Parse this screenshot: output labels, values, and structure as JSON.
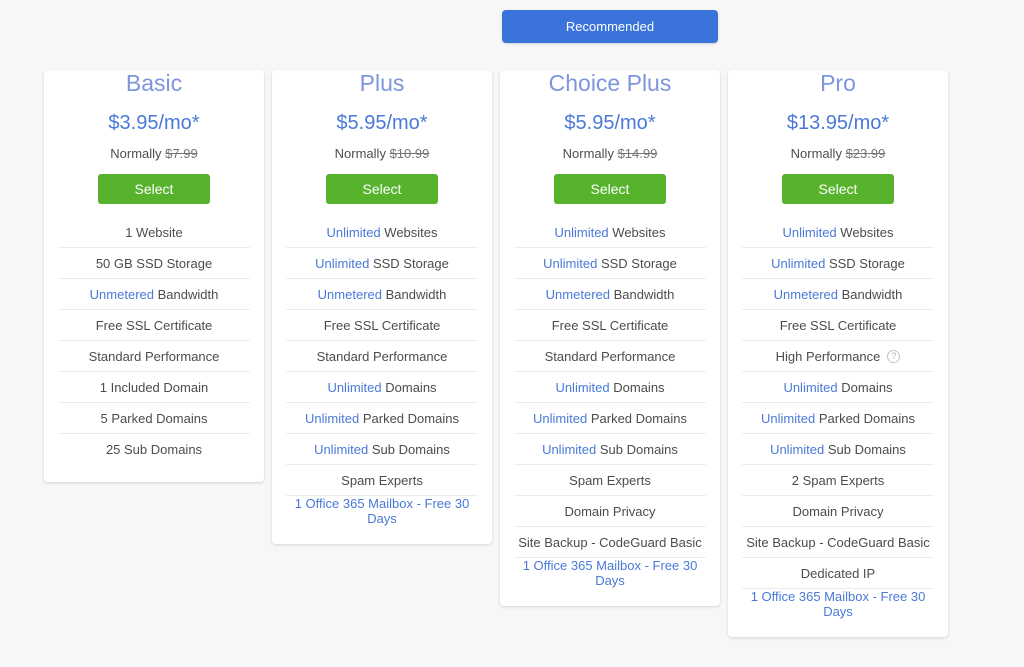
{
  "banner": {
    "label": "Recommended"
  },
  "colors": {
    "background": "#f7f7f8",
    "card": "#ffffff",
    "title_blue": "#7d95dc",
    "price_blue": "#4a79d7",
    "link_blue": "#4a79d7",
    "text_gray": "#4c4c4c",
    "muted_gray": "#757575",
    "button_green": "#57b22c",
    "banner_blue": "#3a73d9",
    "divider": "#ebebeb"
  },
  "plans": [
    {
      "name": "Basic",
      "price": "$3.95/mo*",
      "normally_label": "Normally",
      "original_price": "$7.99",
      "select_label": "Select",
      "recommended": false,
      "features": [
        {
          "link": "",
          "rest": "1 Website"
        },
        {
          "link": "",
          "rest": "50 GB SSD Storage"
        },
        {
          "link": "Unmetered",
          "rest": " Bandwidth"
        },
        {
          "link": "",
          "rest": "Free SSL Certificate"
        },
        {
          "link": "",
          "rest": "Standard Performance"
        },
        {
          "link": "",
          "rest": "1 Included Domain"
        },
        {
          "link": "",
          "rest": "5 Parked Domains"
        },
        {
          "link": "",
          "rest": "25 Sub Domains"
        }
      ]
    },
    {
      "name": "Plus",
      "price": "$5.95/mo*",
      "normally_label": "Normally",
      "original_price": "$10.99",
      "select_label": "Select",
      "recommended": false,
      "features": [
        {
          "link": "Unlimited",
          "rest": " Websites"
        },
        {
          "link": "Unlimited",
          "rest": " SSD Storage"
        },
        {
          "link": "Unmetered",
          "rest": " Bandwidth"
        },
        {
          "link": "",
          "rest": "Free SSL Certificate"
        },
        {
          "link": "",
          "rest": "Standard Performance"
        },
        {
          "link": "Unlimited",
          "rest": " Domains"
        },
        {
          "link": "Unlimited",
          "rest": " Parked Domains"
        },
        {
          "link": "Unlimited",
          "rest": " Sub Domains"
        },
        {
          "link": "",
          "rest": "Spam Experts"
        },
        {
          "link": "1 Office 365 Mailbox - Free 30 Days",
          "rest": ""
        }
      ]
    },
    {
      "name": "Choice Plus",
      "price": "$5.95/mo*",
      "normally_label": "Normally",
      "original_price": "$14.99",
      "select_label": "Select",
      "recommended": true,
      "features": [
        {
          "link": "Unlimited",
          "rest": " Websites"
        },
        {
          "link": "Unlimited",
          "rest": " SSD Storage"
        },
        {
          "link": "Unmetered",
          "rest": " Bandwidth"
        },
        {
          "link": "",
          "rest": "Free SSL Certificate"
        },
        {
          "link": "",
          "rest": "Standard Performance"
        },
        {
          "link": "Unlimited",
          "rest": " Domains"
        },
        {
          "link": "Unlimited",
          "rest": " Parked Domains"
        },
        {
          "link": "Unlimited",
          "rest": " Sub Domains"
        },
        {
          "link": "",
          "rest": "Spam Experts"
        },
        {
          "link": "",
          "rest": "Domain Privacy"
        },
        {
          "link": "",
          "rest": "Site Backup - CodeGuard Basic"
        },
        {
          "link": "1 Office 365 Mailbox - Free 30 Days",
          "rest": ""
        }
      ]
    },
    {
      "name": "Pro",
      "price": "$13.95/mo*",
      "normally_label": "Normally",
      "original_price": "$23.99",
      "select_label": "Select",
      "recommended": false,
      "features": [
        {
          "link": "Unlimited",
          "rest": " Websites"
        },
        {
          "link": "Unlimited",
          "rest": " SSD Storage"
        },
        {
          "link": "Unmetered",
          "rest": " Bandwidth"
        },
        {
          "link": "",
          "rest": "Free SSL Certificate"
        },
        {
          "link": "",
          "rest": "High Performance",
          "info_icon": true
        },
        {
          "link": "Unlimited",
          "rest": " Domains"
        },
        {
          "link": "Unlimited",
          "rest": " Parked Domains"
        },
        {
          "link": "Unlimited",
          "rest": " Sub Domains"
        },
        {
          "link": "",
          "rest": "2 Spam Experts"
        },
        {
          "link": "",
          "rest": "Domain Privacy"
        },
        {
          "link": "",
          "rest": "Site Backup - CodeGuard Basic"
        },
        {
          "link": "",
          "rest": "Dedicated IP"
        },
        {
          "link": "1 Office 365 Mailbox - Free 30 Days",
          "rest": ""
        }
      ]
    }
  ]
}
